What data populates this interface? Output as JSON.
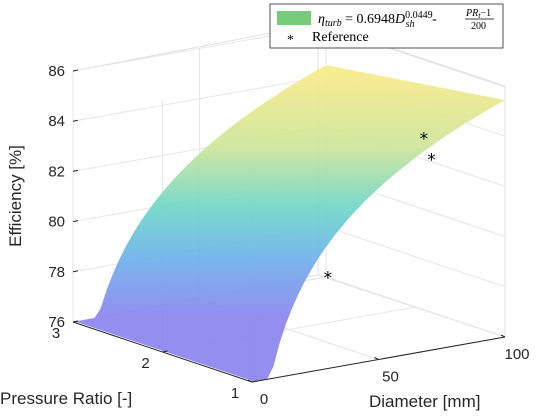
{
  "chart_data": {
    "type": "surface3d",
    "title": "",
    "xlabel": "Diameter [mm]",
    "ylabel": "Pressure Ratio [-]",
    "zlabel": "Efficiency [%]",
    "xlim": [
      0,
      100
    ],
    "ylim": [
      1,
      3
    ],
    "zlim": [
      76,
      86
    ],
    "xticks": [
      "0",
      "50",
      "100"
    ],
    "yticks": [
      "1",
      "2",
      "3"
    ],
    "zticks": [
      "76",
      "78",
      "80",
      "82",
      "84",
      "86"
    ],
    "grid": true,
    "legend_position": "top-right",
    "surface": {
      "name": "η_turb = 0.6948 D_sh^0.0449 - (PR_t-1)/200",
      "legend_parts": {
        "eta": "η",
        "eta_sub": "turb",
        "eq": " = 0.6948",
        "d": "D",
        "d_sub": "sh",
        "d_sup": "0.0449",
        "minus": " - ",
        "frac_num": "PR",
        "frac_num_sub": "t",
        "frac_num_rest": "−1",
        "frac_den": "200"
      },
      "coefficient": 0.6948,
      "exponent": 0.0449,
      "divisor": 200,
      "color": "#77cc77"
    },
    "reference_series": {
      "name": "Reference",
      "marker": "*",
      "points": [
        {
          "x": 30,
          "y": 1.0,
          "z": 79.7
        },
        {
          "x": 75,
          "y": 1.2,
          "z": 84.2
        },
        {
          "x": 78,
          "y": 1.2,
          "z": 83.3
        }
      ]
    }
  }
}
